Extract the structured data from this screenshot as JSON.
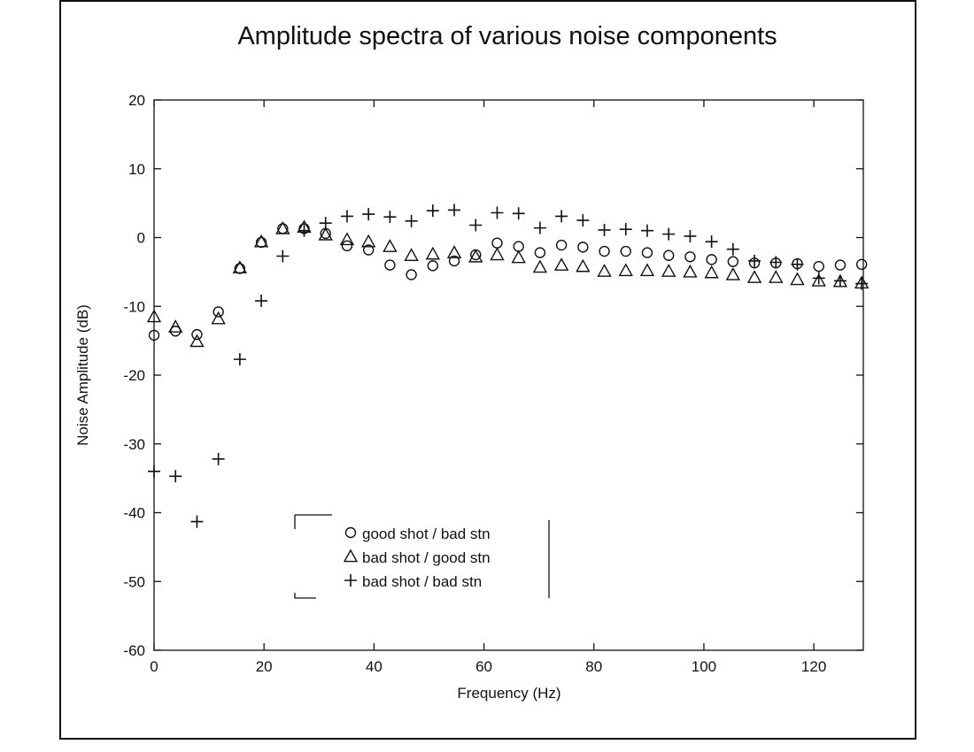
{
  "chart_data": {
    "type": "scatter",
    "title": "Amplitude spectra of various noise components",
    "xlabel": "Frequency (Hz)",
    "ylabel": "Noise Amplitude (dB)",
    "xlim": [
      0,
      129
    ],
    "ylim": [
      -60,
      20
    ],
    "xticks": [
      0,
      20,
      40,
      60,
      80,
      100,
      120
    ],
    "yticks": [
      -60,
      -50,
      -40,
      -30,
      -20,
      -10,
      0,
      10,
      20
    ],
    "grid": false,
    "legend_position": "lower-left",
    "series": [
      {
        "name": "good shot / bad stn",
        "marker": "circle",
        "x": [
          0,
          3.9,
          7.8,
          11.7,
          15.6,
          19.5,
          23.4,
          27.3,
          31.2,
          35.1,
          39,
          42.9,
          46.8,
          50.7,
          54.6,
          58.5,
          62.4,
          66.3,
          70.2,
          74.1,
          78,
          81.9,
          85.8,
          89.7,
          93.6,
          97.5,
          101.4,
          105.3,
          109.2,
          113.1,
          117,
          120.9,
          124.8,
          128.7
        ],
        "y": [
          -14.2,
          -13.6,
          -14.1,
          -10.8,
          -4.5,
          -0.7,
          1.3,
          1.3,
          0.6,
          -1.2,
          -1.8,
          -4.0,
          -5.4,
          -4.1,
          -3.4,
          -2.5,
          -0.8,
          -1.3,
          -2.2,
          -1.1,
          -1.4,
          -2.0,
          -2.0,
          -2.2,
          -2.6,
          -2.8,
          -3.2,
          -3.5,
          -3.7,
          -3.7,
          -3.8,
          -4.2,
          -4.0,
          -3.9
        ]
      },
      {
        "name": "bad shot / good stn",
        "marker": "triangle",
        "x": [
          0,
          3.9,
          7.8,
          11.7,
          15.6,
          19.5,
          23.4,
          27.3,
          31.2,
          35.1,
          39,
          42.9,
          46.8,
          50.7,
          54.6,
          58.5,
          62.4,
          66.3,
          70.2,
          74.1,
          78,
          81.9,
          85.8,
          89.7,
          93.6,
          97.5,
          101.4,
          105.3,
          109.2,
          113.1,
          117,
          120.9,
          124.8,
          128.7
        ],
        "y": [
          -11.5,
          -13.0,
          -15.1,
          -11.8,
          -4.4,
          -0.6,
          1.3,
          1.5,
          0.4,
          -0.3,
          -0.6,
          -1.3,
          -2.6,
          -2.4,
          -2.2,
          -2.8,
          -2.5,
          -2.9,
          -4.3,
          -4.0,
          -4.2,
          -4.9,
          -4.8,
          -4.8,
          -4.9,
          -5.0,
          -5.1,
          -5.4,
          -5.8,
          -5.8,
          -6.1,
          -6.3,
          -6.4,
          -6.6
        ]
      },
      {
        "name": "bad shot / bad stn",
        "marker": "plus",
        "x": [
          0,
          3.9,
          7.8,
          11.7,
          15.6,
          19.5,
          23.4,
          27.3,
          31.2,
          35.1,
          39,
          42.9,
          46.8,
          50.7,
          54.6,
          58.5,
          62.4,
          66.3,
          70.2,
          74.1,
          78,
          81.9,
          85.8,
          89.7,
          93.6,
          97.5,
          101.4,
          105.3,
          109.2,
          113.1,
          117,
          120.9,
          124.8,
          128.7
        ],
        "y": [
          -34.0,
          -34.7,
          -41.3,
          -32.2,
          -17.7,
          -9.2,
          -2.7,
          1.0,
          2.1,
          3.1,
          3.4,
          3.0,
          2.4,
          3.9,
          4.0,
          1.8,
          3.6,
          3.5,
          1.4,
          3.1,
          2.5,
          1.1,
          1.2,
          1.0,
          0.5,
          0.2,
          -0.6,
          -1.7,
          -3.4,
          -3.6,
          -3.9,
          -5.9,
          -6.3,
          -6.7
        ]
      }
    ]
  }
}
